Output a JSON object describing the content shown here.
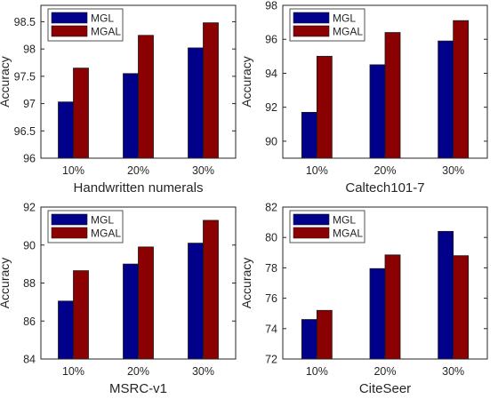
{
  "chart_data": [
    {
      "type": "bar",
      "xlabel": "Handwritten numerals",
      "ylabel": "Accuracy",
      "categories": [
        "10%",
        "20%",
        "30%"
      ],
      "ylim": [
        96,
        98.8
      ],
      "yticks": [
        96,
        96.5,
        97,
        97.5,
        98,
        98.5
      ],
      "series": [
        {
          "name": "MGL",
          "color": "#00008b",
          "values": [
            97.03,
            97.55,
            98.02
          ]
        },
        {
          "name": "MGAL",
          "color": "#8b0000",
          "values": [
            97.65,
            98.25,
            98.48
          ]
        }
      ],
      "legend_position": "top-left",
      "grid": false
    },
    {
      "type": "bar",
      "xlabel": "Caltech101-7",
      "ylabel": "Accuracy",
      "categories": [
        "10%",
        "20%",
        "30%"
      ],
      "ylim": [
        89,
        98
      ],
      "yticks": [
        90,
        92,
        94,
        96,
        98
      ],
      "series": [
        {
          "name": "MGL",
          "color": "#00008b",
          "values": [
            91.7,
            94.5,
            95.9
          ]
        },
        {
          "name": "MGAL",
          "color": "#8b0000",
          "values": [
            95.0,
            96.4,
            97.1
          ]
        }
      ],
      "legend_position": "top-left",
      "grid": false
    },
    {
      "type": "bar",
      "xlabel": "MSRC-v1",
      "ylabel": "Accuracy",
      "categories": [
        "10%",
        "20%",
        "30%"
      ],
      "ylim": [
        84,
        92
      ],
      "yticks": [
        84,
        86,
        88,
        90,
        92
      ],
      "series": [
        {
          "name": "MGL",
          "color": "#00008b",
          "values": [
            87.05,
            89.0,
            90.1
          ]
        },
        {
          "name": "MGAL",
          "color": "#8b0000",
          "values": [
            88.65,
            89.9,
            91.3
          ]
        }
      ],
      "legend_position": "top-left",
      "grid": false
    },
    {
      "type": "bar",
      "xlabel": "CiteSeer",
      "ylabel": "Accuracy",
      "categories": [
        "10%",
        "20%",
        "30%"
      ],
      "ylim": [
        72,
        82
      ],
      "yticks": [
        72,
        74,
        76,
        78,
        80,
        82
      ],
      "series": [
        {
          "name": "MGL",
          "color": "#00008b",
          "values": [
            74.6,
            77.95,
            80.4
          ]
        },
        {
          "name": "MGAL",
          "color": "#8b0000",
          "values": [
            75.2,
            78.85,
            78.8
          ]
        }
      ],
      "legend_position": "top-left",
      "grid": false
    }
  ]
}
